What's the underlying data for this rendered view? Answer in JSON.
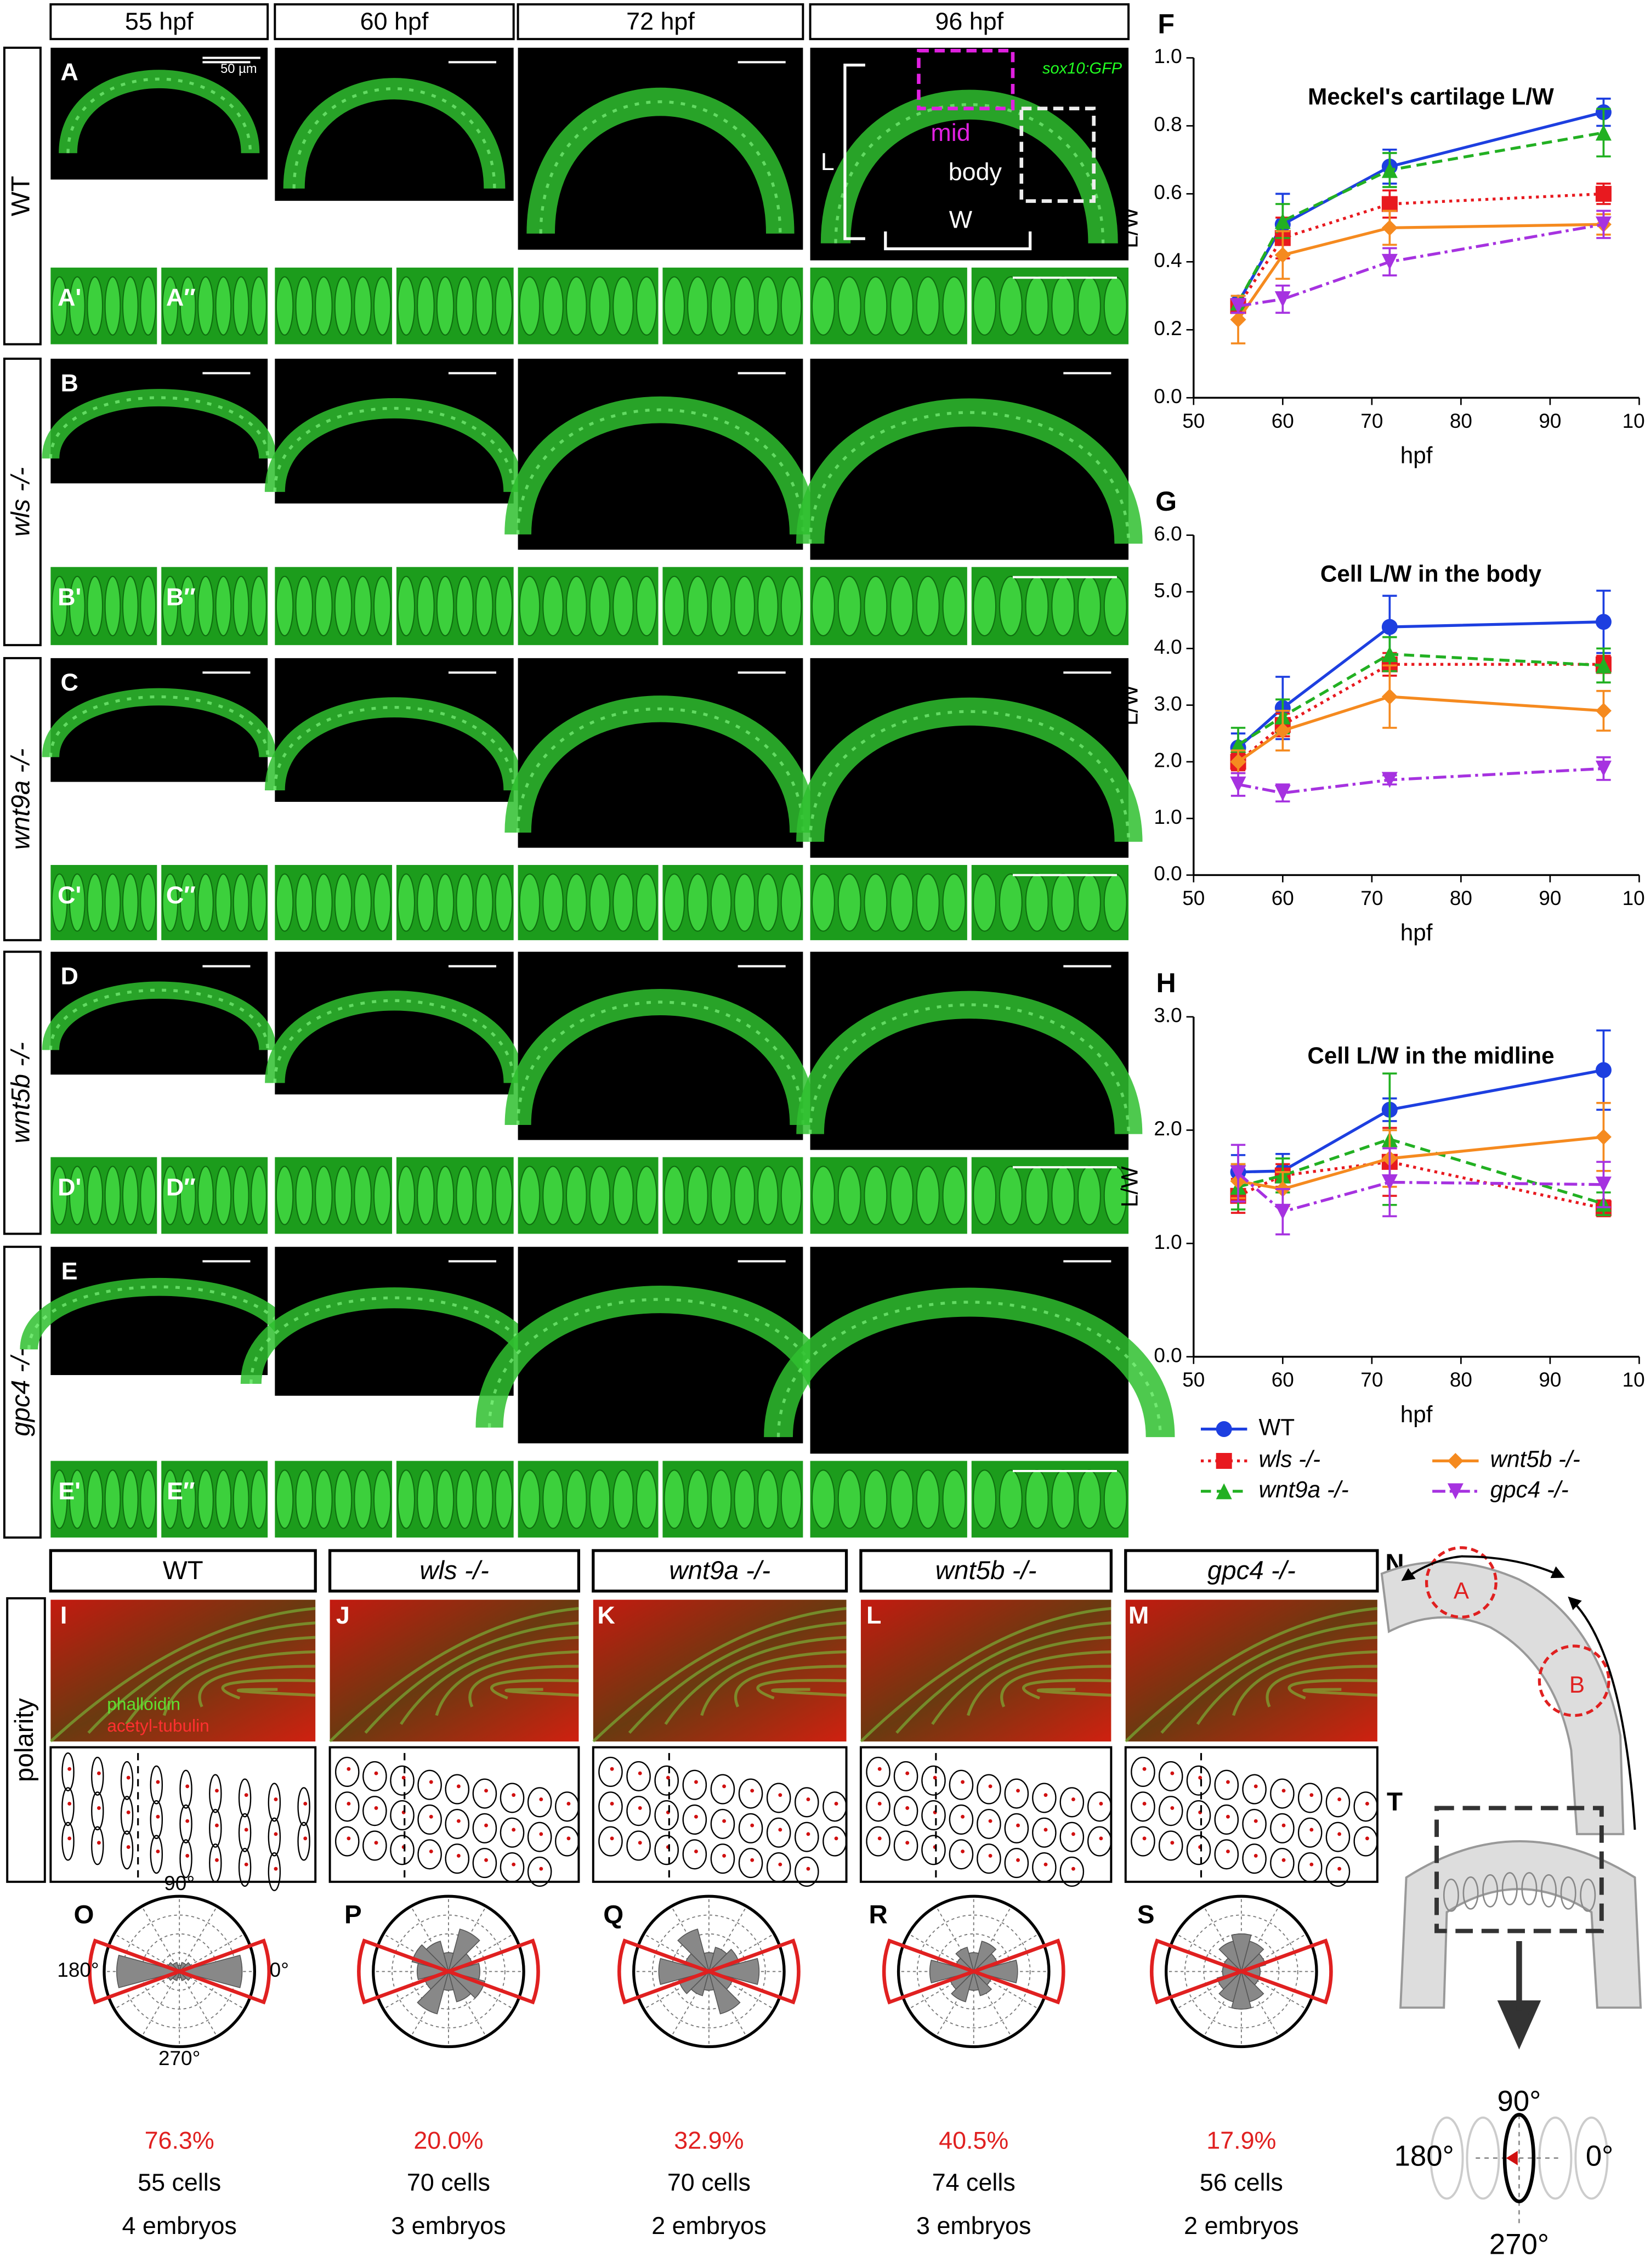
{
  "columns": [
    "55 hpf",
    "60 hpf",
    "72 hpf",
    "96 hpf"
  ],
  "rows": [
    {
      "label": "WT",
      "panel": "A",
      "sub": [
        "A'",
        "A″"
      ]
    },
    {
      "label": "wls -/-",
      "panel": "B",
      "sub": [
        "B'",
        "B″"
      ]
    },
    {
      "label": "wnt9a -/-",
      "panel": "C",
      "sub": [
        "C'",
        "C″"
      ]
    },
    {
      "label": "wnt5b -/-",
      "panel": "D",
      "sub": [
        "D'",
        "D″"
      ]
    },
    {
      "label": "gpc4 -/-",
      "panel": "E",
      "sub": [
        "E'",
        "E″"
      ]
    }
  ],
  "annotations": {
    "scale": "50 µm",
    "reporter": "sox10:GFP",
    "length": "L",
    "width": "W",
    "mid": "mid",
    "body": "body"
  },
  "legend": [
    {
      "name": "WT",
      "color": "#1d3fe0",
      "dash": "solid",
      "marker": "circle"
    },
    {
      "name": "wls -/-",
      "color": "#e8191f",
      "dash": "dotted",
      "marker": "square"
    },
    {
      "name": "wnt9a -/-",
      "color": "#22b022",
      "dash": "dashed",
      "marker": "triangle"
    },
    {
      "name": "wnt5b -/-",
      "color": "#f58a1f",
      "dash": "solid",
      "marker": "diamond"
    },
    {
      "name": "gpc4 -/-",
      "color": "#a632e0",
      "dash": "dashdot",
      "marker": "down-triangle"
    }
  ],
  "chart_data": [
    {
      "type": "line",
      "letter": "F",
      "title": "Meckel's cartilage L/W",
      "x_label": "hpf",
      "y_label": "L/W",
      "x": [
        55,
        60,
        72,
        96
      ],
      "xlim": [
        50,
        100
      ],
      "xticks": [
        50,
        60,
        70,
        80,
        90,
        100
      ],
      "ylim": [
        0,
        1
      ],
      "yticks": [
        {
          "value": 0,
          "label": "0.0"
        },
        0.2,
        0.4,
        0.6,
        0.8,
        {
          "value": 1,
          "label": "1.0"
        }
      ],
      "series": [
        {
          "values": [
            0.28,
            0.51,
            0.68,
            0.84
          ],
          "errors": [
            0.02,
            0.09,
            0.05,
            0.04
          ]
        },
        {
          "values": [
            0.27,
            0.47,
            0.57,
            0.6
          ],
          "errors": [
            0.02,
            0.06,
            0.04,
            0.03
          ]
        },
        {
          "values": [
            0.28,
            0.52,
            0.67,
            0.78
          ],
          "errors": [
            0.02,
            0.05,
            0.05,
            0.07
          ]
        },
        {
          "values": [
            0.23,
            0.42,
            0.5,
            0.51
          ],
          "errors": [
            0.07,
            0.07,
            0.05,
            0.03
          ]
        },
        {
          "values": [
            0.27,
            0.29,
            0.4,
            0.51
          ],
          "errors": [
            0.02,
            0.04,
            0.04,
            0.04
          ]
        }
      ]
    },
    {
      "type": "line",
      "letter": "G",
      "title": "Cell L/W in the body",
      "x_label": "hpf",
      "y_label": "L/W",
      "x": [
        55,
        60,
        72,
        96
      ],
      "xlim": [
        50,
        100
      ],
      "xticks": [
        50,
        60,
        70,
        80,
        90,
        100
      ],
      "ylim": [
        0,
        6
      ],
      "yticks": [
        {
          "value": 0,
          "label": "0.0"
        },
        {
          "value": 1,
          "label": "1.0"
        },
        {
          "value": 2,
          "label": "2.0"
        },
        {
          "value": 3,
          "label": "3.0"
        },
        {
          "value": 4,
          "label": "4.0"
        },
        {
          "value": 5,
          "label": "5.0"
        },
        {
          "value": 6,
          "label": "6.0"
        }
      ],
      "series": [
        {
          "values": [
            2.25,
            2.95,
            4.38,
            4.47
          ],
          "errors": [
            0.25,
            0.55,
            0.55,
            0.55
          ]
        },
        {
          "values": [
            2,
            2.65,
            3.72,
            3.72
          ],
          "errors": [
            0.15,
            0.2,
            0.2,
            0.15
          ]
        },
        {
          "values": [
            2.3,
            2.8,
            3.9,
            3.7
          ],
          "errors": [
            0.3,
            0.3,
            0.3,
            0.3
          ]
        },
        {
          "values": [
            2,
            2.55,
            3.15,
            2.9
          ],
          "errors": [
            0.2,
            0.35,
            0.55,
            0.35
          ]
        },
        {
          "values": [
            1.6,
            1.45,
            1.68,
            1.88
          ],
          "errors": [
            0.2,
            0.15,
            0.08,
            0.2
          ]
        }
      ]
    },
    {
      "type": "line",
      "letter": "H",
      "title": "Cell L/W in the midline",
      "x_label": "hpf",
      "y_label": "L/W",
      "x": [
        55,
        60,
        72,
        96
      ],
      "xlim": [
        50,
        100
      ],
      "xticks": [
        50,
        60,
        70,
        80,
        90,
        100
      ],
      "ylim": [
        0,
        3
      ],
      "yticks": [
        {
          "value": 0,
          "label": "0.0"
        },
        {
          "value": 1,
          "label": "1.0"
        },
        {
          "value": 2,
          "label": "2.0"
        },
        {
          "value": 3,
          "label": "3.0"
        }
      ],
      "series": [
        {
          "values": [
            1.63,
            1.64,
            2.18,
            2.53
          ],
          "errors": [
            0.15,
            0.15,
            0.1,
            0.35
          ]
        },
        {
          "values": [
            1.42,
            1.6,
            1.72,
            1.31
          ],
          "errors": [
            0.15,
            0.1,
            0.3,
            0.07
          ]
        },
        {
          "values": [
            1.5,
            1.6,
            1.92,
            1.35
          ],
          "errors": [
            0.2,
            0.15,
            0.58,
            0.1
          ]
        },
        {
          "values": [
            1.55,
            1.48,
            1.75,
            1.94
          ],
          "errors": [
            0.15,
            0.15,
            0.25,
            0.3
          ]
        },
        {
          "values": [
            1.62,
            1.28,
            1.54,
            1.52
          ],
          "errors": [
            0.25,
            0.2,
            0.3,
            0.2
          ]
        }
      ]
    }
  ],
  "polarity": {
    "section_label": "polarity",
    "stain_green": "phalloidin",
    "stain_red": "acetyl-tubulin",
    "angles": [
      "90°",
      "180°",
      "0°",
      "270°"
    ],
    "rlim": [
      0,
      24
    ],
    "bins": [
      -15,
      15,
      45,
      75,
      105,
      135,
      165,
      195,
      225,
      255,
      285,
      315,
      345
    ],
    "panels": [
      {
        "header": "WT",
        "image_letter": "I",
        "rose_letter": "O",
        "percent": "76.3%",
        "cells": "55 cells",
        "embryos": "4 embryos",
        "counts": [
          20,
          4,
          3,
          2,
          3,
          4,
          20,
          4,
          3,
          2,
          3,
          4
        ]
      },
      {
        "header": "wls -/-",
        "image_letter": "J",
        "rose_letter": "P",
        "percent": "20.0%",
        "cells": "70 cells",
        "embryos": "3 embryos",
        "counts": [
          10,
          8,
          14,
          6,
          10,
          12,
          10,
          8,
          14,
          6,
          10,
          12
        ]
      },
      {
        "header": "wnt9a -/-",
        "image_letter": "K",
        "rose_letter": "Q",
        "percent": "32.9%",
        "cells": "70 cells",
        "embryos": "2 embryos",
        "counts": [
          16,
          10,
          8,
          6,
          14,
          8,
          16,
          10,
          8,
          6,
          14,
          8
        ]
      },
      {
        "header": "wnt5b -/-",
        "image_letter": "L",
        "rose_letter": "R",
        "percent": "40.5%",
        "cells": "74 cells",
        "embryos": "3 embryos",
        "counts": [
          14,
          8,
          10,
          6,
          8,
          6,
          14,
          8,
          10,
          6,
          8,
          6
        ]
      },
      {
        "header": "gpc4 -/-",
        "image_letter": "M",
        "rose_letter": "S",
        "percent": "17.9%",
        "cells": "56 cells",
        "embryos": "2 embryos",
        "counts": [
          6,
          8,
          10,
          12,
          10,
          6,
          6,
          8,
          10,
          12,
          10,
          6
        ]
      }
    ]
  },
  "schematic": {
    "letters": [
      "N",
      "T"
    ],
    "regions": [
      "A",
      "B"
    ],
    "angles": [
      "90°",
      "180°",
      "0°",
      "270°"
    ]
  }
}
